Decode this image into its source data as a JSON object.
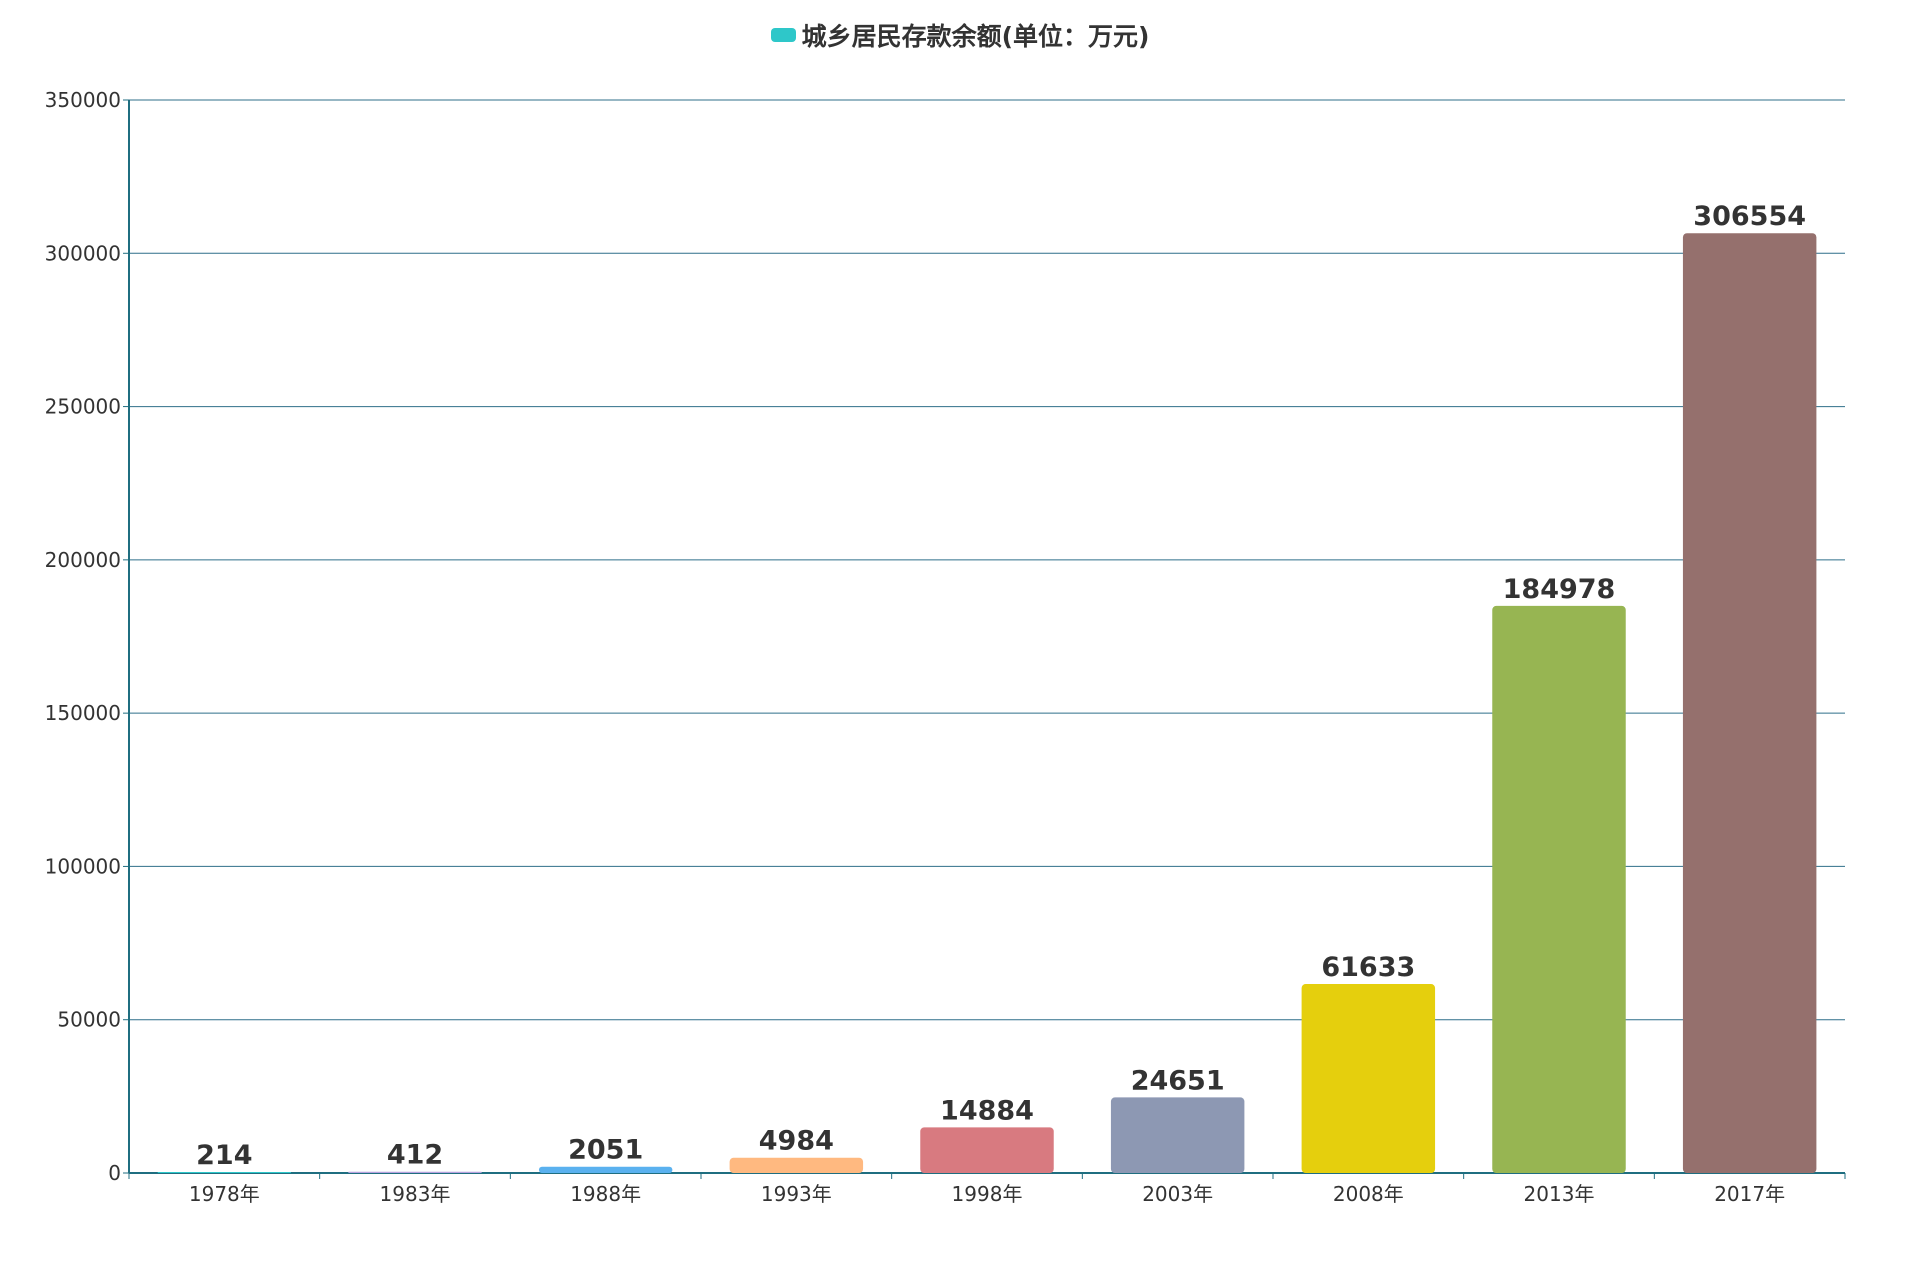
{
  "chart_data": {
    "type": "bar",
    "categories": [
      "1978年",
      "1983年",
      "1988年",
      "1993年",
      "1998年",
      "2003年",
      "2008年",
      "2013年",
      "2017年"
    ],
    "series": [
      {
        "name": "城乡居民存款余额(单位：万元)",
        "values": [
          214,
          412,
          2051,
          4984,
          14884,
          24651,
          61633,
          184978,
          306554
        ]
      }
    ],
    "bar_colors": [
      "#2ec7c9",
      "#b6a2de",
      "#5ab1ef",
      "#ffb980",
      "#d87a80",
      "#8d98b3",
      "#e5cf0d",
      "#97b552",
      "#95706d"
    ],
    "legend_color": "#2ec7c9",
    "axis_color": "#1f6e80",
    "grid_color": "#2f6f8a",
    "ylim": [
      0,
      350000
    ],
    "yticks": [
      0,
      50000,
      100000,
      150000,
      200000,
      250000,
      300000,
      350000
    ],
    "legend_position": "top-center",
    "grid": true,
    "data_labels": true
  }
}
